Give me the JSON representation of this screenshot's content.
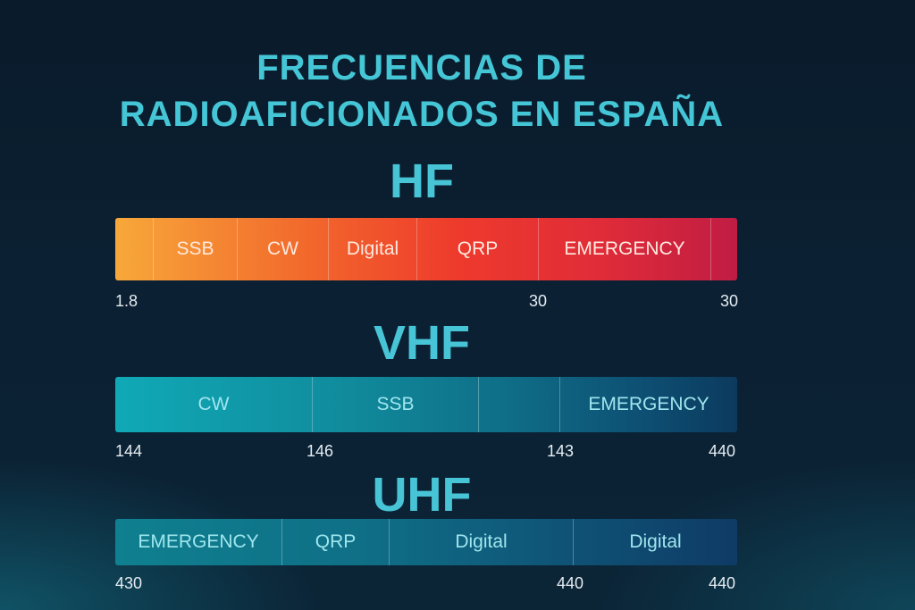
{
  "title": {
    "line1": "FRECUENCIAS DE",
    "line2": "RADIOAFICIONADOS EN ESPAÑA"
  },
  "bands": [
    {
      "name": "HF",
      "segments": [
        "",
        "SSB",
        "CW",
        "Digital",
        "QRP",
        "EMERGENCY",
        ""
      ],
      "ticks": [
        "1.8",
        "30",
        "30"
      ]
    },
    {
      "name": "VHF",
      "segments": [
        "CW",
        "SSB",
        "",
        "EMERGENCY"
      ],
      "ticks": [
        "144",
        "146",
        "143",
        "440"
      ]
    },
    {
      "name": "UHF",
      "segments": [
        "EMERGENCY",
        "QRP",
        "Digital",
        "Digital"
      ],
      "ticks": [
        "430",
        "440",
        "440"
      ]
    }
  ],
  "colors": {
    "title": "#45c6d6",
    "hf_start": "#f7a83a",
    "hf_end": "#c01c44",
    "vhf_start": "#10a9b6",
    "vhf_end": "#0c3a5e",
    "uhf_start": "#0f8090",
    "uhf_end": "#0f3b66"
  }
}
